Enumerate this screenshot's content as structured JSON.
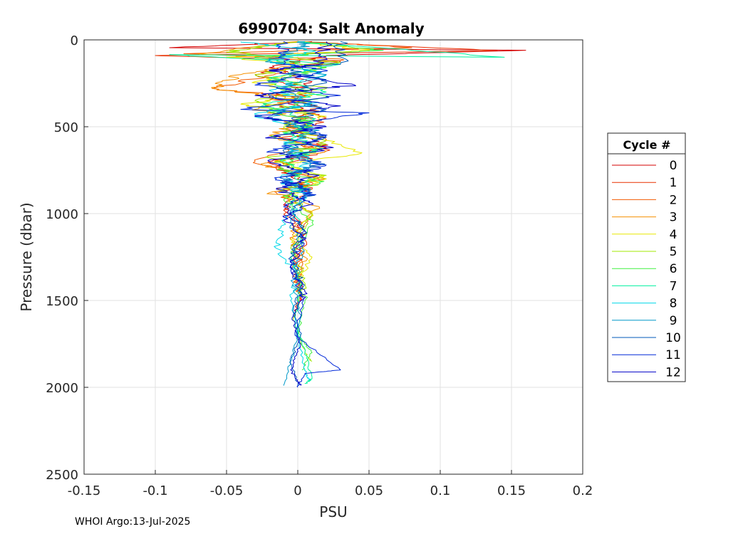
{
  "chart_data": {
    "type": "line",
    "title": "6990704: Salt Anomaly",
    "xlabel": "PSU",
    "ylabel": "Pressure (dbar)",
    "xlim": [
      -0.15,
      0.2
    ],
    "ylim": [
      0,
      2500
    ],
    "y_reversed": true,
    "xticks": [
      "-0.15",
      "-0.1",
      "-0.05",
      "0",
      "0.05",
      "0.1",
      "0.15",
      "0.2"
    ],
    "xtick_values": [
      -0.15,
      -0.1,
      -0.05,
      0,
      0.05,
      0.1,
      0.15,
      0.2
    ],
    "yticks": [
      "0",
      "500",
      "1000",
      "1500",
      "2000",
      "2500"
    ],
    "ytick_values": [
      0,
      500,
      1000,
      1500,
      2000,
      2500
    ],
    "grid": true,
    "legend": {
      "title": "Cycle #",
      "placement": "right"
    },
    "series": [
      {
        "name": "0",
        "color": "#d40000",
        "values": [
          [
            0.01,
            10
          ],
          [
            -0.09,
            45
          ],
          [
            0.16,
            60
          ],
          [
            0.02,
            90
          ],
          [
            -0.02,
            160
          ],
          [
            0.01,
            240
          ],
          [
            -0.02,
            330
          ],
          [
            0.01,
            420
          ],
          [
            -0.005,
            520
          ],
          [
            0.02,
            620
          ],
          [
            -0.02,
            710
          ],
          [
            0.005,
            820
          ],
          [
            -0.01,
            950
          ],
          [
            0.005,
            1100
          ],
          [
            -0.003,
            1300
          ],
          [
            0.002,
            1450
          ],
          [
            -0.003,
            1600
          ]
        ]
      },
      {
        "name": "1",
        "color": "#e83000",
        "values": [
          [
            0.0,
            10
          ],
          [
            0.14,
            62
          ],
          [
            -0.1,
            90
          ],
          [
            0.03,
            120
          ],
          [
            -0.03,
            200
          ],
          [
            0.01,
            290
          ],
          [
            -0.01,
            380
          ],
          [
            0.02,
            450
          ],
          [
            -0.01,
            560
          ],
          [
            0.02,
            640
          ],
          [
            -0.015,
            740
          ],
          [
            0.01,
            860
          ],
          [
            -0.01,
            980
          ],
          [
            0.005,
            1150
          ],
          [
            -0.002,
            1350
          ],
          [
            0.002,
            1500
          ]
        ]
      },
      {
        "name": "2",
        "color": "#f25a00",
        "values": [
          [
            0.005,
            10
          ],
          [
            0.08,
            45
          ],
          [
            -0.08,
            80
          ],
          [
            0.03,
            110
          ],
          [
            -0.01,
            180
          ],
          [
            -0.06,
            280
          ],
          [
            0.0,
            330
          ],
          [
            0.015,
            410
          ],
          [
            -0.01,
            480
          ],
          [
            0.02,
            580
          ],
          [
            -0.03,
            700
          ],
          [
            0.02,
            800
          ],
          [
            -0.015,
            880
          ],
          [
            0.01,
            1000
          ],
          [
            -0.005,
            1150
          ],
          [
            0.003,
            1300
          ],
          [
            0.0,
            1450
          ]
        ]
      },
      {
        "name": "3",
        "color": "#f59000",
        "values": [
          [
            0.0,
            10
          ],
          [
            -0.07,
            80
          ],
          [
            0.02,
            120
          ],
          [
            -0.04,
            200
          ],
          [
            -0.06,
            280
          ],
          [
            0.0,
            340
          ],
          [
            -0.03,
            400
          ],
          [
            0.01,
            460
          ],
          [
            -0.02,
            550
          ],
          [
            0.02,
            640
          ],
          [
            -0.025,
            720
          ],
          [
            0.015,
            800
          ],
          [
            -0.02,
            880
          ],
          [
            0.015,
            960
          ],
          [
            -0.005,
            1100
          ],
          [
            0.005,
            1250
          ],
          [
            -0.002,
            1400
          ]
        ]
      },
      {
        "name": "4",
        "color": "#e8e800",
        "values": [
          [
            0.0,
            10
          ],
          [
            0.05,
            60
          ],
          [
            -0.05,
            100
          ],
          [
            0.02,
            160
          ],
          [
            -0.03,
            240
          ],
          [
            0.01,
            320
          ],
          [
            -0.04,
            370
          ],
          [
            0.02,
            440
          ],
          [
            0.0,
            520
          ],
          [
            0.045,
            650
          ],
          [
            -0.01,
            720
          ],
          [
            0.02,
            800
          ],
          [
            -0.01,
            900
          ],
          [
            0.01,
            1000
          ],
          [
            -0.005,
            1150
          ],
          [
            0.01,
            1250
          ],
          [
            0.0,
            1400
          ]
        ]
      },
      {
        "name": "5",
        "color": "#a0e800",
        "values": [
          [
            0.0,
            10
          ],
          [
            -0.05,
            70
          ],
          [
            0.03,
            130
          ],
          [
            -0.03,
            200
          ],
          [
            0.02,
            280
          ],
          [
            -0.03,
            350
          ],
          [
            0.01,
            420
          ],
          [
            -0.01,
            500
          ],
          [
            0.02,
            600
          ],
          [
            -0.02,
            680
          ],
          [
            0.02,
            780
          ],
          [
            -0.01,
            870
          ],
          [
            0.01,
            1000
          ],
          [
            -0.005,
            1200
          ],
          [
            0.005,
            1400
          ],
          [
            -0.003,
            1600
          ],
          [
            0.005,
            1800
          ],
          [
            0.01,
            1850
          ]
        ]
      },
      {
        "name": "6",
        "color": "#40f040",
        "values": [
          [
            0.0,
            10
          ],
          [
            0.06,
            60
          ],
          [
            -0.03,
            100
          ],
          [
            0.02,
            160
          ],
          [
            -0.02,
            240
          ],
          [
            0.02,
            330
          ],
          [
            -0.02,
            400
          ],
          [
            0.01,
            480
          ],
          [
            -0.015,
            560
          ],
          [
            0.01,
            640
          ],
          [
            -0.01,
            740
          ],
          [
            0.015,
            820
          ],
          [
            -0.01,
            920
          ],
          [
            0.01,
            1050
          ],
          [
            -0.005,
            1250
          ],
          [
            0.005,
            1500
          ],
          [
            0.0,
            1700
          ],
          [
            0.01,
            1800
          ],
          [
            0.003,
            1900
          ]
        ]
      },
      {
        "name": "7",
        "color": "#00f0a0",
        "values": [
          [
            0.0,
            10
          ],
          [
            0.145,
            100
          ],
          [
            -0.09,
            85
          ],
          [
            0.03,
            140
          ],
          [
            -0.02,
            220
          ],
          [
            0.02,
            300
          ],
          [
            -0.025,
            380
          ],
          [
            0.01,
            460
          ],
          [
            -0.01,
            540
          ],
          [
            0.015,
            620
          ],
          [
            -0.01,
            700
          ],
          [
            0.005,
            820
          ],
          [
            -0.005,
            950
          ],
          [
            0.005,
            1100
          ],
          [
            -0.005,
            1250
          ],
          [
            0.003,
            1400
          ],
          [
            -0.002,
            1600
          ],
          [
            0.005,
            1800
          ],
          [
            0.01,
            1950
          ],
          [
            0.005,
            1980
          ]
        ]
      },
      {
        "name": "8",
        "color": "#00d8e8",
        "values": [
          [
            -0.04,
            10
          ],
          [
            0.01,
            60
          ],
          [
            -0.02,
            120
          ],
          [
            0.02,
            200
          ],
          [
            -0.02,
            290
          ],
          [
            0.015,
            360
          ],
          [
            -0.03,
            430
          ],
          [
            0.01,
            520
          ],
          [
            -0.01,
            600
          ],
          [
            0.01,
            700
          ],
          [
            -0.01,
            800
          ],
          [
            0.005,
            900
          ],
          [
            -0.01,
            1050
          ],
          [
            -0.015,
            1200
          ],
          [
            0.0,
            1350
          ],
          [
            -0.005,
            1500
          ],
          [
            0.0,
            1700
          ],
          [
            0.005,
            1900
          ],
          [
            0.008,
            1960
          ]
        ]
      },
      {
        "name": "9",
        "color": "#0098c8",
        "values": [
          [
            0.005,
            10
          ],
          [
            0.0,
            60
          ],
          [
            -0.02,
            120
          ],
          [
            0.02,
            200
          ],
          [
            -0.015,
            280
          ],
          [
            0.01,
            360
          ],
          [
            -0.02,
            440
          ],
          [
            0.015,
            520
          ],
          [
            -0.01,
            600
          ],
          [
            0.01,
            700
          ],
          [
            -0.005,
            800
          ],
          [
            0.005,
            900
          ],
          [
            -0.005,
            1050
          ],
          [
            0.003,
            1200
          ],
          [
            -0.003,
            1400
          ],
          [
            0.002,
            1600
          ],
          [
            -0.003,
            1800
          ],
          [
            -0.01,
            1990
          ]
        ]
      },
      {
        "name": "10",
        "color": "#0058b8",
        "values": [
          [
            0.03,
            10
          ],
          [
            0.03,
            140
          ],
          [
            -0.01,
            160
          ],
          [
            0.02,
            240
          ],
          [
            -0.02,
            320
          ],
          [
            0.02,
            400
          ],
          [
            -0.01,
            480
          ],
          [
            0.02,
            560
          ],
          [
            -0.01,
            640
          ],
          [
            0.015,
            720
          ],
          [
            -0.01,
            800
          ],
          [
            0.01,
            880
          ],
          [
            -0.005,
            980
          ],
          [
            0.005,
            1100
          ],
          [
            -0.005,
            1250
          ],
          [
            0.003,
            1400
          ],
          [
            -0.003,
            1550
          ],
          [
            0.002,
            1700
          ],
          [
            -0.005,
            1850
          ],
          [
            0.0,
            1990
          ]
        ]
      },
      {
        "name": "11",
        "color": "#0028d8",
        "values": [
          [
            -0.01,
            10
          ],
          [
            -0.01,
            140
          ],
          [
            0.02,
            180
          ],
          [
            -0.03,
            260
          ],
          [
            0.03,
            320
          ],
          [
            -0.04,
            400
          ],
          [
            0.05,
            420
          ],
          [
            0.0,
            480
          ],
          [
            0.02,
            560
          ],
          [
            -0.02,
            640
          ],
          [
            0.02,
            720
          ],
          [
            -0.015,
            800
          ],
          [
            0.01,
            880
          ],
          [
            -0.01,
            960
          ],
          [
            0.005,
            1100
          ],
          [
            -0.005,
            1300
          ],
          [
            0.004,
            1500
          ],
          [
            -0.002,
            1700
          ],
          [
            0.03,
            1900
          ],
          [
            0.005,
            1920
          ],
          [
            0.0,
            2000
          ]
        ]
      },
      {
        "name": "12",
        "color": "#0000c8",
        "values": [
          [
            0.02,
            10
          ],
          [
            0.015,
            140
          ],
          [
            -0.02,
            180
          ],
          [
            0.04,
            260
          ],
          [
            -0.03,
            320
          ],
          [
            0.03,
            380
          ],
          [
            -0.03,
            440
          ],
          [
            0.02,
            500
          ],
          [
            -0.02,
            560
          ],
          [
            0.025,
            620
          ],
          [
            -0.02,
            700
          ],
          [
            0.015,
            780
          ],
          [
            -0.015,
            860
          ],
          [
            0.01,
            940
          ],
          [
            -0.01,
            1020
          ],
          [
            0.005,
            1150
          ],
          [
            -0.005,
            1300
          ],
          [
            0.005,
            1450
          ],
          [
            -0.004,
            1600
          ],
          [
            0.002,
            1750
          ],
          [
            -0.005,
            1900
          ],
          [
            0.002,
            1990
          ]
        ]
      }
    ]
  },
  "footer": "WHOI Argo:13-Jul-2025"
}
